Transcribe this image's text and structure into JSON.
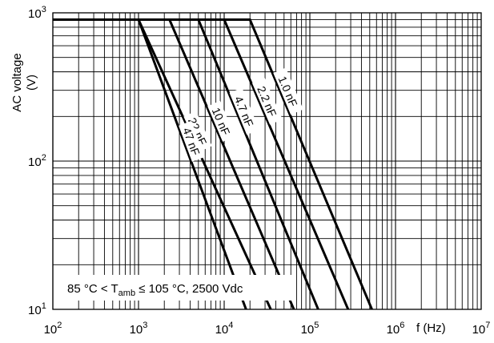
{
  "chart_data": {
    "type": "line",
    "title": "",
    "xlabel": "f (Hz)",
    "ylabel": [
      "AC voltage",
      "(V)"
    ],
    "xscale": "log",
    "yscale": "log",
    "xlim": [
      100,
      10000000
    ],
    "ylim": [
      10,
      1000
    ],
    "grid": true,
    "x_ticks": [
      {
        "base": "10",
        "exp": "2",
        "value": 100
      },
      {
        "base": "10",
        "exp": "3",
        "value": 1000
      },
      {
        "base": "10",
        "exp": "4",
        "value": 10000
      },
      {
        "base": "10",
        "exp": "5",
        "value": 100000
      },
      {
        "base": "10",
        "exp": "6",
        "value": 1000000
      },
      {
        "base": "10",
        "exp": "7",
        "value": 10000000
      }
    ],
    "y_ticks": [
      {
        "base": "10",
        "exp": "1",
        "value": 10
      },
      {
        "base": "10",
        "exp": "2",
        "value": 100
      },
      {
        "base": "10",
        "exp": "3",
        "value": 1000
      }
    ],
    "annotation": {
      "parts": [
        "85 °C < T",
        "amb",
        " ≤ 105 °C, 2500 Vdc"
      ]
    },
    "series": [
      {
        "name": "1.0 nF",
        "x": [
          100,
          20000,
          530000
        ],
        "y": [
          900,
          900,
          10
        ]
      },
      {
        "name": "2.2 nF",
        "x": [
          100,
          10000,
          280000
        ],
        "y": [
          900,
          900,
          10
        ]
      },
      {
        "name": "4.7 nF",
        "x": [
          100,
          5000,
          125000
        ],
        "y": [
          900,
          900,
          10
        ]
      },
      {
        "name": "10 nF",
        "x": [
          100,
          2300,
          65000
        ],
        "y": [
          900,
          900,
          10
        ]
      },
      {
        "name": "22 nF",
        "x": [
          100,
          1000,
          35000
        ],
        "y": [
          900,
          900,
          10
        ]
      },
      {
        "name": "47 nF",
        "x": [
          100,
          1000,
          18000
        ],
        "y": [
          900,
          900,
          10
        ]
      }
    ]
  }
}
